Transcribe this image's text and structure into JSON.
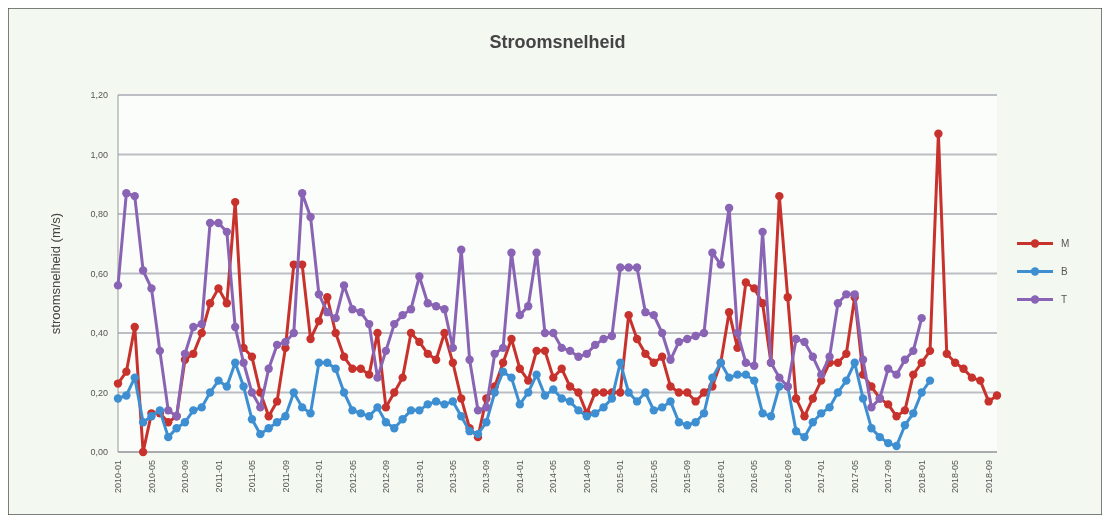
{
  "chart_data": {
    "type": "line",
    "title": "Stroomsnelheid",
    "ylabel": "stroomsnelheid (m/s)",
    "categories": [
      "2010-01",
      null,
      null,
      null,
      "2010-05",
      null,
      null,
      null,
      "2010-09",
      null,
      null,
      null,
      "2011-01",
      null,
      null,
      null,
      "2011-05",
      null,
      null,
      null,
      "2011-09",
      null,
      null,
      null,
      "2012-01",
      null,
      null,
      null,
      "2012-05",
      null,
      null,
      null,
      "2012-09",
      null,
      null,
      null,
      "2013-01",
      null,
      null,
      null,
      "2013-05",
      null,
      null,
      null,
      "2013-09",
      null,
      null,
      null,
      "2014-01",
      null,
      null,
      null,
      "2014-05",
      null,
      null,
      null,
      "2014-09",
      null,
      null,
      null,
      "2015-01",
      null,
      null,
      null,
      "2015-05",
      null,
      null,
      null,
      "2015-09",
      null,
      null,
      null,
      "2016-01",
      null,
      null,
      null,
      "2016-05",
      null,
      null,
      null,
      "2016-09",
      null,
      null,
      null,
      "2017-01",
      null,
      null,
      null,
      "2017-05",
      null,
      null,
      null,
      "2017-09",
      null,
      null,
      null,
      "2018-01",
      null,
      null,
      null,
      "2018-05",
      null,
      null,
      null,
      "2018-09",
      null
    ],
    "series": [
      {
        "name": "M",
        "color": "#c8322d",
        "values": [
          0.23,
          0.27,
          0.42,
          0.0,
          0.13,
          0.13,
          0.1,
          0.12,
          0.31,
          0.33,
          0.4,
          0.5,
          0.55,
          0.5,
          0.84,
          0.35,
          0.32,
          0.2,
          0.12,
          0.17,
          0.35,
          0.63,
          0.63,
          0.38,
          0.44,
          0.52,
          0.4,
          0.32,
          0.28,
          0.28,
          0.26,
          0.4,
          0.15,
          0.2,
          0.25,
          0.4,
          0.37,
          0.33,
          0.31,
          0.4,
          0.3,
          0.18,
          0.08,
          0.05,
          0.18,
          0.22,
          0.3,
          0.38,
          0.28,
          0.24,
          0.34,
          0.34,
          0.25,
          0.28,
          0.22,
          0.2,
          0.13,
          0.2,
          0.2,
          0.2,
          0.2,
          0.46,
          0.38,
          0.33,
          0.3,
          0.32,
          0.22,
          0.2,
          0.2,
          0.17,
          0.2,
          0.22,
          0.3,
          0.47,
          0.35,
          0.57,
          0.55,
          0.5,
          0.3,
          0.86,
          0.52,
          0.18,
          0.12,
          0.18,
          0.24,
          0.3,
          0.3,
          0.33,
          0.52,
          0.26,
          0.22,
          0.18,
          0.16,
          0.12,
          0.14,
          0.26,
          0.3,
          0.34,
          1.07,
          0.33,
          0.3,
          0.28,
          0.25,
          0.24,
          0.17,
          0.19
        ]
      },
      {
        "name": "B",
        "color": "#3d8fd1",
        "values": [
          0.18,
          0.19,
          0.25,
          0.1,
          0.12,
          0.14,
          0.05,
          0.08,
          0.1,
          0.14,
          0.15,
          0.2,
          0.24,
          0.22,
          0.3,
          0.22,
          0.11,
          0.06,
          0.08,
          0.1,
          0.12,
          0.2,
          0.15,
          0.13,
          0.3,
          0.3,
          0.28,
          0.2,
          0.14,
          0.13,
          0.12,
          0.15,
          0.1,
          0.08,
          0.11,
          0.14,
          0.14,
          0.16,
          0.17,
          0.16,
          0.17,
          0.12,
          0.07,
          0.06,
          0.1,
          0.2,
          0.27,
          0.25,
          0.16,
          0.2,
          0.26,
          0.19,
          0.21,
          0.18,
          0.17,
          0.14,
          0.12,
          0.13,
          0.15,
          0.18,
          0.3,
          0.2,
          0.17,
          0.2,
          0.14,
          0.15,
          0.17,
          0.1,
          0.09,
          0.1,
          0.13,
          0.25,
          0.3,
          0.25,
          0.26,
          0.26,
          0.24,
          0.13,
          0.12,
          0.22,
          0.22,
          0.07,
          0.05,
          0.1,
          0.13,
          0.15,
          0.2,
          0.24,
          0.3,
          0.18,
          0.08,
          0.05,
          0.03,
          0.02,
          0.09,
          0.13,
          0.2,
          0.24,
          null,
          null,
          null,
          null,
          null,
          null,
          null,
          null
        ]
      },
      {
        "name": "T",
        "color": "#8a64b4",
        "values": [
          0.56,
          0.87,
          0.86,
          0.61,
          0.55,
          0.34,
          0.14,
          0.12,
          0.33,
          0.42,
          0.43,
          0.77,
          0.77,
          0.74,
          0.42,
          0.3,
          0.2,
          0.15,
          0.28,
          0.36,
          0.37,
          0.4,
          0.87,
          0.79,
          0.53,
          0.47,
          0.45,
          0.56,
          0.48,
          0.47,
          0.43,
          0.25,
          0.34,
          0.43,
          0.46,
          0.48,
          0.59,
          0.5,
          0.49,
          0.48,
          0.35,
          0.68,
          0.31,
          0.14,
          0.15,
          0.33,
          0.35,
          0.67,
          0.46,
          0.49,
          0.67,
          0.4,
          0.4,
          0.35,
          0.34,
          0.32,
          0.33,
          0.36,
          0.38,
          0.39,
          0.62,
          0.62,
          0.62,
          0.47,
          0.46,
          0.4,
          0.31,
          0.37,
          0.38,
          0.39,
          0.4,
          0.67,
          0.63,
          0.82,
          0.4,
          0.3,
          0.29,
          0.74,
          0.3,
          0.25,
          0.22,
          0.38,
          0.37,
          0.32,
          0.26,
          0.32,
          0.5,
          0.53,
          0.53,
          0.31,
          0.15,
          0.18,
          0.28,
          0.26,
          0.31,
          0.34,
          0.45,
          null,
          null,
          null,
          null,
          null,
          null,
          null,
          null,
          null
        ]
      }
    ],
    "ylim": [
      0,
      1.2
    ],
    "yticks": [
      {
        "value": 0,
        "label": "0,00"
      },
      {
        "value": 0.2,
        "label": "0,20"
      },
      {
        "value": 0.4,
        "label": "0,40"
      },
      {
        "value": 0.6,
        "label": "0,60"
      },
      {
        "value": 0.8,
        "label": "0,80"
      },
      {
        "value": 1.0,
        "label": "1,00"
      },
      {
        "value": 1.2,
        "label": "1,20"
      }
    ],
    "grid": "y",
    "legend": "right",
    "marker": "circle",
    "line_style": "solid"
  }
}
